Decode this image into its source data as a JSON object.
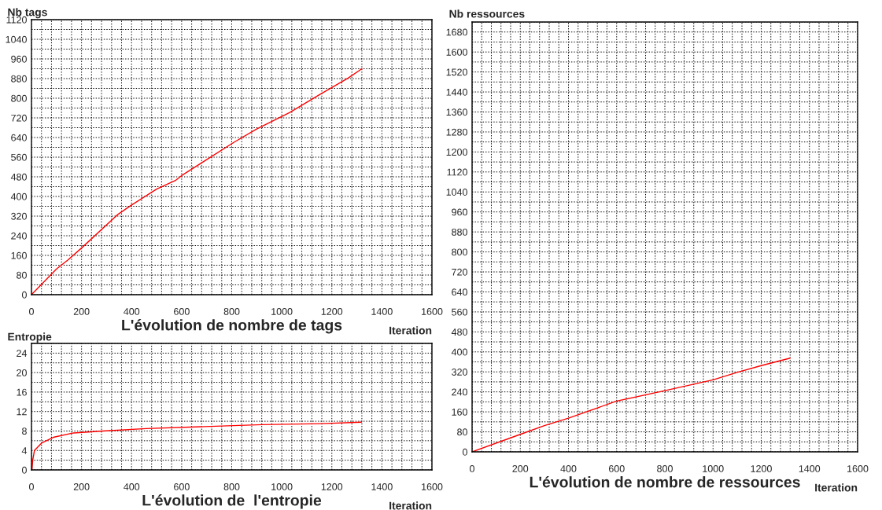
{
  "chart_data": [
    {
      "type": "line",
      "ylabel": "Nb tags",
      "xlabel": "L'évolution de nombre de tags",
      "annotations": [
        "Iteration"
      ],
      "series": [
        {
          "color": "#ff0000",
          "x": [
            0,
            100,
            145,
            200,
            343,
            400,
            500,
            575,
            600,
            700,
            808,
            900,
            1032,
            1150,
            1265,
            1320
          ],
          "values": [
            0,
            105,
            141,
            190,
            325,
            365,
            430,
            465,
            485,
            550,
            620,
            675,
            742,
            814,
            882,
            920
          ]
        }
      ],
      "xlim": [
        0,
        1600
      ],
      "ylim": [
        0,
        1120
      ],
      "grid": true,
      "marker": "none",
      "line_style": "solid",
      "xticks": [
        0,
        {
          "value": 40,
          "label": null
        },
        {
          "value": 80,
          "label": null
        },
        {
          "value": 120,
          "label": null
        },
        {
          "value": 160,
          "label": null
        },
        200,
        {
          "value": 240,
          "label": null
        },
        {
          "value": 280,
          "label": null
        },
        {
          "value": 320,
          "label": null
        },
        {
          "value": 360,
          "label": null
        },
        400,
        {
          "value": 440,
          "label": null
        },
        {
          "value": 480,
          "label": null
        },
        {
          "value": 520,
          "label": null
        },
        {
          "value": 560,
          "label": null
        },
        600,
        {
          "value": 640,
          "label": null
        },
        {
          "value": 680,
          "label": null
        },
        {
          "value": 720,
          "label": null
        },
        {
          "value": 760,
          "label": null
        },
        800,
        {
          "value": 840,
          "label": null
        },
        {
          "value": 880,
          "label": null
        },
        {
          "value": 920,
          "label": null
        },
        {
          "value": 960,
          "label": null
        },
        1000,
        {
          "value": 1040,
          "label": null
        },
        {
          "value": 1080,
          "label": null
        },
        {
          "value": 1120,
          "label": null
        },
        {
          "value": 1160,
          "label": null
        },
        1200,
        {
          "value": 1240,
          "label": null
        },
        {
          "value": 1280,
          "label": null
        },
        {
          "value": 1320,
          "label": null
        },
        {
          "value": 1360,
          "label": null
        },
        1400,
        {
          "value": 1440,
          "label": null
        },
        {
          "value": 1480,
          "label": null
        },
        {
          "value": 1520,
          "label": null
        },
        {
          "value": 1560,
          "label": null
        },
        1600
      ],
      "yticks": [
        0,
        {
          "value": 40,
          "label": null
        },
        80,
        {
          "value": 120,
          "label": null
        },
        160,
        {
          "value": 200,
          "label": null
        },
        240,
        {
          "value": 280,
          "label": null
        },
        320,
        {
          "value": 360,
          "label": null
        },
        400,
        {
          "value": 440,
          "label": null
        },
        480,
        {
          "value": 520,
          "label": null
        },
        560,
        {
          "value": 600,
          "label": null
        },
        640,
        {
          "value": 680,
          "label": null
        },
        720,
        {
          "value": 760,
          "label": null
        },
        800,
        {
          "value": 840,
          "label": null
        },
        880,
        {
          "value": 920,
          "label": null
        },
        960,
        {
          "value": 1000,
          "label": null
        },
        1040,
        {
          "value": 1080,
          "label": null
        },
        1120
      ]
    },
    {
      "type": "line",
      "ylabel": "Entropie",
      "xlabel": "L'évolution de  l'entropie",
      "annotations": [
        "Iteration"
      ],
      "series": [
        {
          "color": "#ff0000",
          "x": [
            2,
            5,
            12,
            40,
            87,
            168,
            285,
            459,
            691,
            923,
            1155,
            1318
          ],
          "values": [
            0,
            2,
            4,
            5.5,
            6.7,
            7.6,
            8,
            8.5,
            8.9,
            9.3,
            9.5,
            9.8
          ]
        }
      ],
      "xlim": [
        0,
        1600
      ],
      "ylim": [
        0,
        26
      ],
      "grid": true,
      "marker": "none",
      "line_style": "solid",
      "xticks": [
        0,
        {
          "value": 40,
          "label": null
        },
        {
          "value": 80,
          "label": null
        },
        {
          "value": 120,
          "label": null
        },
        {
          "value": 160,
          "label": null
        },
        200,
        {
          "value": 240,
          "label": null
        },
        {
          "value": 280,
          "label": null
        },
        {
          "value": 320,
          "label": null
        },
        {
          "value": 360,
          "label": null
        },
        400,
        {
          "value": 440,
          "label": null
        },
        {
          "value": 480,
          "label": null
        },
        {
          "value": 520,
          "label": null
        },
        {
          "value": 560,
          "label": null
        },
        600,
        {
          "value": 640,
          "label": null
        },
        {
          "value": 680,
          "label": null
        },
        {
          "value": 720,
          "label": null
        },
        {
          "value": 760,
          "label": null
        },
        800,
        {
          "value": 840,
          "label": null
        },
        {
          "value": 880,
          "label": null
        },
        {
          "value": 920,
          "label": null
        },
        {
          "value": 960,
          "label": null
        },
        1000,
        {
          "value": 1040,
          "label": null
        },
        {
          "value": 1080,
          "label": null
        },
        {
          "value": 1120,
          "label": null
        },
        {
          "value": 1160,
          "label": null
        },
        1200,
        {
          "value": 1240,
          "label": null
        },
        {
          "value": 1280,
          "label": null
        },
        {
          "value": 1320,
          "label": null
        },
        {
          "value": 1360,
          "label": null
        },
        1400,
        {
          "value": 1440,
          "label": null
        },
        {
          "value": 1480,
          "label": null
        },
        {
          "value": 1520,
          "label": null
        },
        {
          "value": 1560,
          "label": null
        },
        1600
      ],
      "yticks": [
        0,
        {
          "value": 2,
          "label": null
        },
        4,
        {
          "value": 6,
          "label": null
        },
        8,
        {
          "value": 10,
          "label": null
        },
        12,
        {
          "value": 14,
          "label": null
        },
        16,
        {
          "value": 18,
          "label": null
        },
        20,
        {
          "value": 22,
          "label": null
        },
        24,
        {
          "value": 26,
          "label": null
        }
      ]
    },
    {
      "type": "line",
      "ylabel": "Nb ressources",
      "xlabel": "L'évolution de nombre de ressources",
      "annotations": [
        "Iteration"
      ],
      "series": [
        {
          "color": "#ff0000",
          "x": [
            0,
            200,
            300,
            400,
            600,
            800,
            1000,
            1100,
            1200,
            1320
          ],
          "values": [
            0,
            70,
            105,
            135,
            203,
            245,
            288,
            318,
            345,
            375
          ]
        }
      ],
      "xlim": [
        0,
        1600
      ],
      "ylim": [
        0,
        1720
      ],
      "grid": true,
      "marker": "none",
      "line_style": "solid",
      "xticks": [
        0,
        {
          "value": 40,
          "label": null
        },
        {
          "value": 80,
          "label": null
        },
        {
          "value": 120,
          "label": null
        },
        {
          "value": 160,
          "label": null
        },
        200,
        {
          "value": 240,
          "label": null
        },
        {
          "value": 280,
          "label": null
        },
        {
          "value": 320,
          "label": null
        },
        {
          "value": 360,
          "label": null
        },
        400,
        {
          "value": 440,
          "label": null
        },
        {
          "value": 480,
          "label": null
        },
        {
          "value": 520,
          "label": null
        },
        {
          "value": 560,
          "label": null
        },
        600,
        {
          "value": 640,
          "label": null
        },
        {
          "value": 680,
          "label": null
        },
        {
          "value": 720,
          "label": null
        },
        {
          "value": 760,
          "label": null
        },
        800,
        {
          "value": 840,
          "label": null
        },
        {
          "value": 880,
          "label": null
        },
        {
          "value": 920,
          "label": null
        },
        {
          "value": 960,
          "label": null
        },
        1000,
        {
          "value": 1040,
          "label": null
        },
        {
          "value": 1080,
          "label": null
        },
        {
          "value": 1120,
          "label": null
        },
        {
          "value": 1160,
          "label": null
        },
        1200,
        {
          "value": 1240,
          "label": null
        },
        {
          "value": 1280,
          "label": null
        },
        {
          "value": 1320,
          "label": null
        },
        {
          "value": 1360,
          "label": null
        },
        1400,
        {
          "value": 1440,
          "label": null
        },
        {
          "value": 1480,
          "label": null
        },
        {
          "value": 1520,
          "label": null
        },
        {
          "value": 1560,
          "label": null
        },
        1600
      ],
      "yticks": [
        0,
        {
          "value": 40,
          "label": null
        },
        80,
        {
          "value": 120,
          "label": null
        },
        160,
        {
          "value": 200,
          "label": null
        },
        240,
        {
          "value": 280,
          "label": null
        },
        320,
        {
          "value": 360,
          "label": null
        },
        400,
        {
          "value": 440,
          "label": null
        },
        480,
        {
          "value": 520,
          "label": null
        },
        560,
        {
          "value": 600,
          "label": null
        },
        640,
        {
          "value": 680,
          "label": null
        },
        720,
        {
          "value": 760,
          "label": null
        },
        800,
        {
          "value": 840,
          "label": null
        },
        880,
        {
          "value": 920,
          "label": null
        },
        960,
        {
          "value": 1000,
          "label": null
        },
        1040,
        {
          "value": 1080,
          "label": null
        },
        1120,
        {
          "value": 1160,
          "label": null
        },
        1200,
        {
          "value": 1240,
          "label": null
        },
        1280,
        {
          "value": 1320,
          "label": null
        },
        1360,
        {
          "value": 1400,
          "label": null
        },
        1440,
        {
          "value": 1480,
          "label": null
        },
        1520,
        {
          "value": 1560,
          "label": null
        },
        1600,
        {
          "value": 1640,
          "label": null
        },
        1680,
        {
          "value": 1720,
          "label": null
        }
      ]
    }
  ]
}
